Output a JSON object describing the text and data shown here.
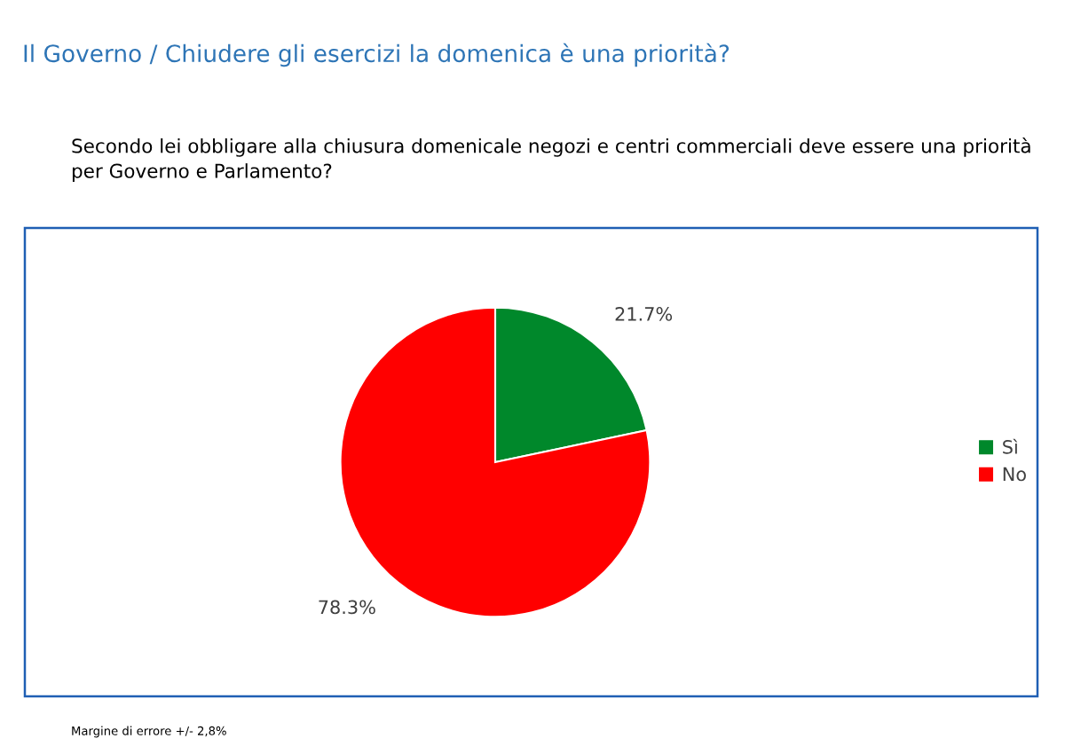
{
  "chart_data": {
    "type": "pie",
    "title": "Il Governo / Chiudere gli esercizi la domenica è una priorità?",
    "subtitle": "Secondo lei obbligare alla chiusura domenicale negozi e centri commerciali deve essere una priorità per Governo e Parlamento?",
    "categories": [
      "Sì",
      "No"
    ],
    "values": [
      21.7,
      78.3
    ],
    "colors": [
      "#00882b",
      "#ff0000"
    ],
    "value_labels": [
      "21.7%",
      "78.3%"
    ],
    "legend": "right",
    "annotations": [
      "Margine di errore +/- 2,8%"
    ]
  }
}
